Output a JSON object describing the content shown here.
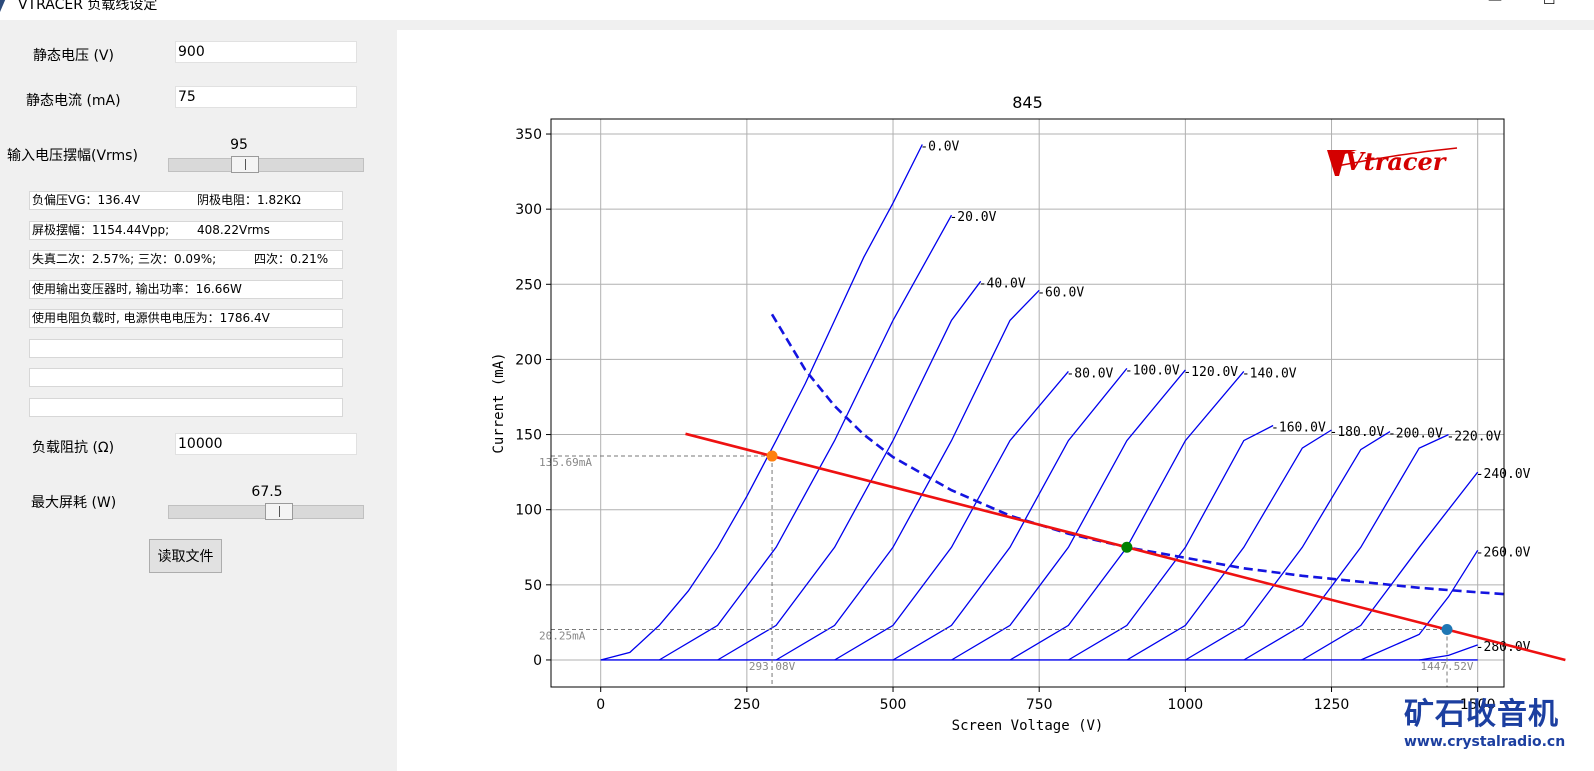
{
  "window": {
    "title": "VTRACER 负载线设定",
    "minimize_icon": "minimize-icon",
    "maximize_icon": "maximize-icon"
  },
  "params": {
    "quiescent_voltage": {
      "label": "静态电压 (V)",
      "value": "900"
    },
    "quiescent_current": {
      "label": "静态电流 (mA)",
      "value": "75"
    },
    "input_swing": {
      "label": "输入电压摆幅(Vrms)",
      "value": "95",
      "level_fraction": 0.37
    },
    "load_impedance": {
      "label": "负载阻抗 (Ω)",
      "value": "10000"
    },
    "max_dissipation": {
      "label": "最大屏耗 (W)",
      "value": "67.5",
      "level_fraction": 0.57
    }
  },
  "results": {
    "bias": "负偏压VG：136.4V",
    "cathode_resistor": "阴极电阻：1.82KΩ",
    "plate_swing_pp": "屏极摆幅：1154.44Vpp;",
    "plate_swing_rms": "408.22Vrms",
    "distortion_2_3": "失真二次：2.57%; 三次：0.09%;",
    "distortion_4": "四次：0.21%",
    "output_power": "使用输出变压器时, 输出功率：16.66W",
    "supply_voltage": "使用电阻负载时, 电源供电电压为：1786.4V",
    "extra_1": "",
    "extra_2": "",
    "extra_3": ""
  },
  "read_file_button": "读取文件",
  "chart_data": {
    "type": "line",
    "title": "845",
    "xlabel": "Screen Voltage (V)",
    "ylabel": "Current (mA)",
    "xlim": [
      -85,
      1545
    ],
    "ylim": [
      -18,
      360
    ],
    "xticks": [
      0,
      250,
      500,
      750,
      1000,
      1250,
      1500
    ],
    "yticks": [
      0,
      50,
      100,
      150,
      200,
      250,
      300,
      350
    ],
    "grid": true,
    "logo_text": "Vtracer",
    "curve_color": "#0000ee",
    "load_line_color": "#ee1111",
    "dissipation_color": "#1414e0",
    "grid_curves": [
      {
        "label": "-0.0V",
        "x": [
          0,
          50,
          100,
          150,
          200,
          250,
          300,
          350,
          400,
          450,
          500,
          550
        ],
        "y": [
          0,
          5,
          23,
          46,
          75,
          109,
          146,
          184,
          226,
          268,
          304,
          343
        ]
      },
      {
        "label": "-20.0V",
        "x": [
          100,
          200,
          300,
          400,
          500,
          600
        ],
        "y": [
          0,
          23,
          75,
          146,
          226,
          296
        ]
      },
      {
        "label": "-40.0V",
        "x": [
          200,
          300,
          400,
          500,
          600,
          650
        ],
        "y": [
          0,
          23,
          75,
          146,
          226,
          252
        ]
      },
      {
        "label": "-60.0V",
        "x": [
          300,
          400,
          500,
          600,
          700,
          750
        ],
        "y": [
          0,
          23,
          75,
          146,
          226,
          246
        ]
      },
      {
        "label": "-80.0V",
        "x": [
          400,
          500,
          600,
          700,
          800
        ],
        "y": [
          0,
          23,
          75,
          146,
          192
        ]
      },
      {
        "label": "-100.0V",
        "x": [
          500,
          600,
          700,
          800,
          900
        ],
        "y": [
          0,
          23,
          75,
          146,
          194
        ]
      },
      {
        "label": "-120.0V",
        "x": [
          600,
          700,
          800,
          900,
          1000
        ],
        "y": [
          0,
          23,
          75,
          146,
          193
        ]
      },
      {
        "label": "-140.0V",
        "x": [
          700,
          800,
          900,
          1000,
          1100
        ],
        "y": [
          0,
          23,
          75,
          146,
          192
        ]
      },
      {
        "label": "-160.0V",
        "x": [
          800,
          900,
          1000,
          1100,
          1150
        ],
        "y": [
          0,
          23,
          75,
          146,
          156
        ]
      },
      {
        "label": "-180.0V",
        "x": [
          900,
          1000,
          1100,
          1200,
          1250
        ],
        "y": [
          0,
          23,
          75,
          141,
          153
        ]
      },
      {
        "label": "-200.0V",
        "x": [
          1000,
          1100,
          1200,
          1300,
          1350
        ],
        "y": [
          0,
          23,
          75,
          140,
          152
        ]
      },
      {
        "label": "-220.0V",
        "x": [
          1100,
          1200,
          1300,
          1400,
          1450
        ],
        "y": [
          0,
          23,
          75,
          141,
          150
        ]
      },
      {
        "label": "-240.0V",
        "x": [
          1200,
          1300,
          1400,
          1500
        ],
        "y": [
          0,
          23,
          75,
          125
        ]
      },
      {
        "label": "-260.0V",
        "x": [
          1300,
          1400,
          1450,
          1500
        ],
        "y": [
          0,
          17,
          42,
          73
        ]
      },
      {
        "label": "-280.0V",
        "x": [
          1400,
          1450,
          1500
        ],
        "y": [
          0,
          3,
          10
        ]
      }
    ],
    "load_line": {
      "x": [
        145,
        1650
      ],
      "y": [
        150.5,
        0
      ]
    },
    "dissipation_curve": {
      "x": [
        293,
        350,
        400,
        450,
        500,
        600,
        700,
        800,
        900,
        1000,
        1100,
        1200,
        1300,
        1400,
        1500,
        1650
      ],
      "y": [
        230,
        193,
        169,
        150,
        135,
        113,
        96,
        84,
        75,
        68,
        61,
        56,
        52,
        48,
        45,
        41
      ]
    },
    "operating_point": {
      "x": 900,
      "y": 75,
      "color": "#008000"
    },
    "swing_min": {
      "x": 293.08,
      "y": 135.69,
      "color": "#ff7f0e",
      "x_label": "293.08V",
      "y_label": "135.69mA"
    },
    "swing_max": {
      "x": 1447.52,
      "y": 20.25,
      "color": "#1f77b4",
      "x_label": "1447.52V",
      "y_label": "20.25mA"
    }
  },
  "watermark": {
    "brand": "矿石收音机",
    "url": "www.crystalradio.cn"
  }
}
